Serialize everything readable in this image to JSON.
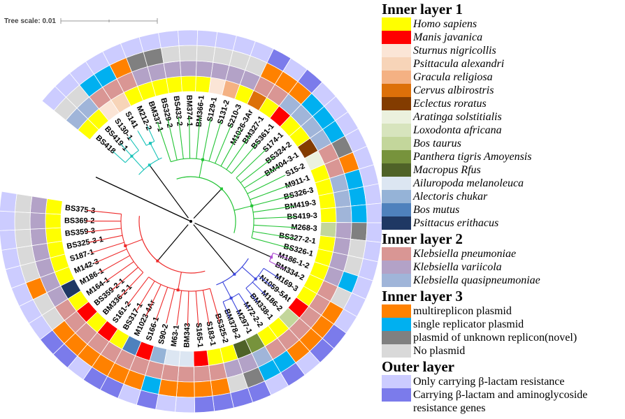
{
  "tree_scale": {
    "label": "Tree scale: 0.01"
  },
  "palette": {
    "host": {
      "homo": "#FFFF00",
      "manis": "#FF0000",
      "sturnus": "#FBE5D6",
      "psittacula": "#F7D4B8",
      "gracula": "#F4B183",
      "cervus": "#DD7009",
      "eclectus": "#833C00",
      "aratinga": "#EBF1DE",
      "loxodonta": "#D7E4BD",
      "bostaurus": "#C3D69B",
      "panthera": "#77933C",
      "macropus": "#4F6228",
      "ailuropoda": "#DCE6F2",
      "alectoris": "#95B3D7",
      "bosmutus": "#4F81BD",
      "psittacuserithacus": "#1F3864"
    },
    "species": {
      "pneu": "#D99694",
      "vari": "#B3A2C7",
      "quasi": "#A0B5D9"
    },
    "plasmid": {
      "multi": "#FF8100",
      "single": "#00B0F0",
      "unknown": "#808080",
      "none": "#D9D9D9"
    },
    "outer": {
      "light": "#CCCCFF",
      "dark": "#7B7BEB"
    }
  },
  "legend": {
    "sections": [
      {
        "title": "Inner layer 1",
        "items": [
          {
            "label": "Homo sapiens",
            "color": "#FFFF00",
            "italic": true
          },
          {
            "label": "Manis javanica",
            "color": "#FF0000",
            "italic": true
          },
          {
            "label": "Sturnus nigricollis",
            "color": "#FBE5D6",
            "italic": true
          },
          {
            "label": "Psittacula alexandri",
            "color": "#F7D4B8",
            "italic": true
          },
          {
            "label": "Gracula religiosa",
            "color": "#F4B183",
            "italic": true
          },
          {
            "label": "Cervus albirostris",
            "color": "#DD7009",
            "italic": true
          },
          {
            "label": "Eclectus roratus",
            "color": "#833C00",
            "italic": true
          },
          {
            "label": "Aratinga solstitialis",
            "color": "#EBF1DE",
            "italic": true
          },
          {
            "label": "Loxodonta africana",
            "color": "#D7E4BD",
            "italic": true
          },
          {
            "label": "Bos taurus",
            "color": "#C3D69B",
            "italic": true
          },
          {
            "label": "Panthera tigris Amoyensis",
            "color": "#77933C",
            "italic": true
          },
          {
            "label": "Macropus Rfus",
            "color": "#4F6228",
            "italic": true
          },
          {
            "label": "Ailuropoda melanoleuca",
            "color": "#DCE6F2",
            "italic": true
          },
          {
            "label": "Alectoris chukar",
            "color": "#95B3D7",
            "italic": true
          },
          {
            "label": "Bos mutus",
            "color": "#4F81BD",
            "italic": true
          },
          {
            "label": "Psittacus erithacus",
            "color": "#1F3864",
            "italic": true
          }
        ]
      },
      {
        "title": "Inner layer 2",
        "items": [
          {
            "label": "Klebsiella pneumoniae",
            "color": "#D99694",
            "italic": true
          },
          {
            "label": "Klebsiella variicola",
            "color": "#B3A2C7",
            "italic": true
          },
          {
            "label": "Klebsiella quasipneumoniae",
            "color": "#A0B5D9",
            "italic": true
          }
        ]
      },
      {
        "title": "Inner layer 3",
        "items": [
          {
            "label": "multireplicon plasmid",
            "color": "#FF8100",
            "italic": false
          },
          {
            "label": "single replicator plasmid",
            "color": "#00B0F0",
            "italic": false
          },
          {
            "label": "plasmid of unknown replicon(novel)",
            "color": "#808080",
            "italic": false
          },
          {
            "label": "No plasmid",
            "color": "#D9D9D9",
            "italic": false
          }
        ]
      },
      {
        "title": "Outer layer",
        "items": [
          {
            "label": "Only carrying β-lactam resistance",
            "color": "#CCCCFF",
            "italic": false
          },
          {
            "label": "Carrying β-lactam and aminoglycoside resistance genes",
            "color": "#7B7BEB",
            "italic": false
          }
        ]
      }
    ]
  },
  "taxa": [
    {
      "label": "BS418",
      "host": "homo",
      "sp": "quasi",
      "pl": "none",
      "out": "light"
    },
    {
      "label": "BS419-1",
      "host": "homo",
      "sp": "quasi",
      "pl": "none",
      "out": "light"
    },
    {
      "label": "S130-1",
      "host": "sturnus",
      "sp": "pneu",
      "pl": "single",
      "out": "light"
    },
    {
      "label": "S141",
      "host": "psittacula",
      "sp": "pneu",
      "pl": "single",
      "out": "light"
    },
    {
      "label": "M212-2",
      "host": "homo",
      "sp": "pneu",
      "pl": "multi",
      "out": "light"
    },
    {
      "label": "BM337-1",
      "host": "homo",
      "sp": "vari",
      "pl": "unknown",
      "out": "light"
    },
    {
      "label": "BS329-2",
      "host": "homo",
      "sp": "vari",
      "pl": "unknown",
      "out": "light"
    },
    {
      "label": "BS433-2",
      "host": "homo",
      "sp": "vari",
      "pl": "none",
      "out": "light"
    },
    {
      "label": "BM374-1",
      "host": "homo",
      "sp": "vari",
      "pl": "none",
      "out": "light"
    },
    {
      "label": "BM366-1",
      "host": "homo",
      "sp": "vari",
      "pl": "none",
      "out": "light"
    },
    {
      "label": "S129-1",
      "host": "sturnus",
      "sp": "vari",
      "pl": "none",
      "out": "light"
    },
    {
      "label": "S131-2",
      "host": "gracula",
      "sp": "vari",
      "pl": "none",
      "out": "light"
    },
    {
      "label": "S210-3",
      "host": "homo",
      "sp": "vari",
      "pl": "none",
      "out": "light"
    },
    {
      "label": "M1026-3Ar",
      "host": "cervus",
      "sp": "pneu",
      "pl": "multi",
      "out": "dark"
    },
    {
      "label": "BM327-1",
      "host": "homo",
      "sp": "pneu",
      "pl": "multi",
      "out": "light"
    },
    {
      "label": "BS361-1",
      "host": "manis",
      "sp": "quasi",
      "pl": "multi",
      "out": "dark"
    },
    {
      "label": "S174-1",
      "host": "homo",
      "sp": "quasi",
      "pl": "single",
      "out": "light"
    },
    {
      "label": "BS324-2",
      "host": "homo",
      "sp": "quasi",
      "pl": "single",
      "out": "light"
    },
    {
      "label": "BM404-3-1",
      "host": "eclectus",
      "sp": "quasi",
      "pl": "single",
      "out": "light"
    },
    {
      "label": "S15-2",
      "host": "aratinga",
      "sp": "pneu",
      "pl": "unknown",
      "out": "light"
    },
    {
      "label": "M911-1",
      "host": "homo",
      "sp": "pneu",
      "pl": "multi",
      "out": "light"
    },
    {
      "label": "BS326-3",
      "host": "homo",
      "sp": "quasi",
      "pl": "single",
      "out": "light"
    },
    {
      "label": "BM419-3",
      "host": "homo",
      "sp": "quasi",
      "pl": "single",
      "out": "light"
    },
    {
      "label": "BS419-3",
      "host": "homo",
      "sp": "quasi",
      "pl": "single",
      "out": "light"
    },
    {
      "label": "M268-3",
      "host": "bostaurus",
      "sp": "vari",
      "pl": "unknown",
      "out": "light"
    },
    {
      "label": "BS327-2-1",
      "host": "homo",
      "sp": "vari",
      "pl": "none",
      "out": "light"
    },
    {
      "label": "BS326-1",
      "host": "homo",
      "sp": "vari",
      "pl": "none",
      "out": "light"
    },
    {
      "label": "M186-1-2",
      "host": "homo",
      "sp": "vari",
      "pl": "single",
      "out": "light"
    },
    {
      "label": "BM334-2",
      "host": "homo",
      "sp": "pneu",
      "pl": "none",
      "out": "light"
    },
    {
      "label": "M169-3",
      "host": "homo",
      "sp": "pneu",
      "pl": "multi",
      "out": "light"
    },
    {
      "label": "N1059-5At",
      "host": "manis",
      "sp": "pneu",
      "pl": "multi",
      "out": "dark"
    },
    {
      "label": "M186-2",
      "host": "bostaurus",
      "sp": "pneu",
      "pl": "multi",
      "out": "dark"
    },
    {
      "label": "BM338-1",
      "host": "homo",
      "sp": "pneu",
      "pl": "multi",
      "out": "light"
    },
    {
      "label": "M72-2-2",
      "host": "homo",
      "sp": "pneu",
      "pl": "single",
      "out": "dark"
    },
    {
      "label": "M297-1",
      "host": "panthera",
      "sp": "quasi",
      "pl": "single",
      "out": "light"
    },
    {
      "label": "BM378-2",
      "host": "macropus",
      "sp": "vari",
      "pl": "unknown",
      "out": "dark"
    },
    {
      "label": "BS325-2",
      "host": "homo",
      "sp": "vari",
      "pl": "none",
      "out": "dark"
    },
    {
      "label": "S183-1",
      "host": "homo",
      "sp": "pneu",
      "pl": "multi",
      "out": "dark"
    },
    {
      "label": "S165-1",
      "host": "manis",
      "sp": "pneu",
      "pl": "multi",
      "out": "dark"
    },
    {
      "label": "BM343",
      "host": "ailuropoda",
      "sp": "pneu",
      "pl": "multi",
      "out": "light"
    },
    {
      "label": "M63-1",
      "host": "ailuropoda",
      "sp": "pneu",
      "pl": "multi",
      "out": "light"
    },
    {
      "label": "S90-2",
      "host": "alectoris",
      "sp": "pneu",
      "pl": "single",
      "out": "dark"
    },
    {
      "label": "S166-1",
      "host": "manis",
      "sp": "pneu",
      "pl": "multi",
      "out": "light"
    },
    {
      "label": "M1023-4Ar",
      "host": "bosmutus",
      "sp": "pneu",
      "pl": "multi",
      "out": "dark"
    },
    {
      "label": "BS317-1",
      "host": "homo",
      "sp": "pneu",
      "pl": "multi",
      "out": "dark"
    },
    {
      "label": "S161-2",
      "host": "manis",
      "sp": "pneu",
      "pl": "multi",
      "out": "light"
    },
    {
      "label": "BM336-2-1",
      "host": "homo",
      "sp": "pneu",
      "pl": "multi",
      "out": "dark"
    },
    {
      "label": "BS359-2-1",
      "host": "manis",
      "sp": "pneu",
      "pl": "multi",
      "out": "dark"
    },
    {
      "label": "M164-1",
      "host": "homo",
      "sp": "pneu",
      "pl": "none",
      "out": "light"
    },
    {
      "label": "M186-1",
      "host": "psittacuserithacus",
      "sp": "vari",
      "pl": "none",
      "out": "light"
    },
    {
      "label": "M142-3",
      "host": "homo",
      "sp": "vari",
      "pl": "multi",
      "out": "light"
    },
    {
      "label": "S187-1",
      "host": "homo",
      "sp": "vari",
      "pl": "none",
      "out": "light"
    },
    {
      "label": "BS325-3-1",
      "host": "homo",
      "sp": "vari",
      "pl": "none",
      "out": "light"
    },
    {
      "label": "BS359-3",
      "host": "homo",
      "sp": "vari",
      "pl": "none",
      "out": "light"
    },
    {
      "label": "BS369-2",
      "host": "homo",
      "sp": "vari",
      "pl": "none",
      "out": "light"
    },
    {
      "label": "BS375-3",
      "host": "homo",
      "sp": "vari",
      "pl": "none",
      "out": "light"
    }
  ],
  "clades": [
    {
      "name": "teal-clade",
      "color": "#19C3B9",
      "from": 0,
      "to": 4
    },
    {
      "name": "green-clade",
      "color": "#23C435",
      "from": 5,
      "to": 26
    },
    {
      "name": "violet-clade",
      "color": "#AE4FD4",
      "from": 27,
      "to": 28
    },
    {
      "name": "blue-clade",
      "color": "#3C46DC",
      "from": 29,
      "to": 35
    },
    {
      "name": "red-clade",
      "color": "#EE2B2B",
      "from": 36,
      "to": 55
    }
  ]
}
